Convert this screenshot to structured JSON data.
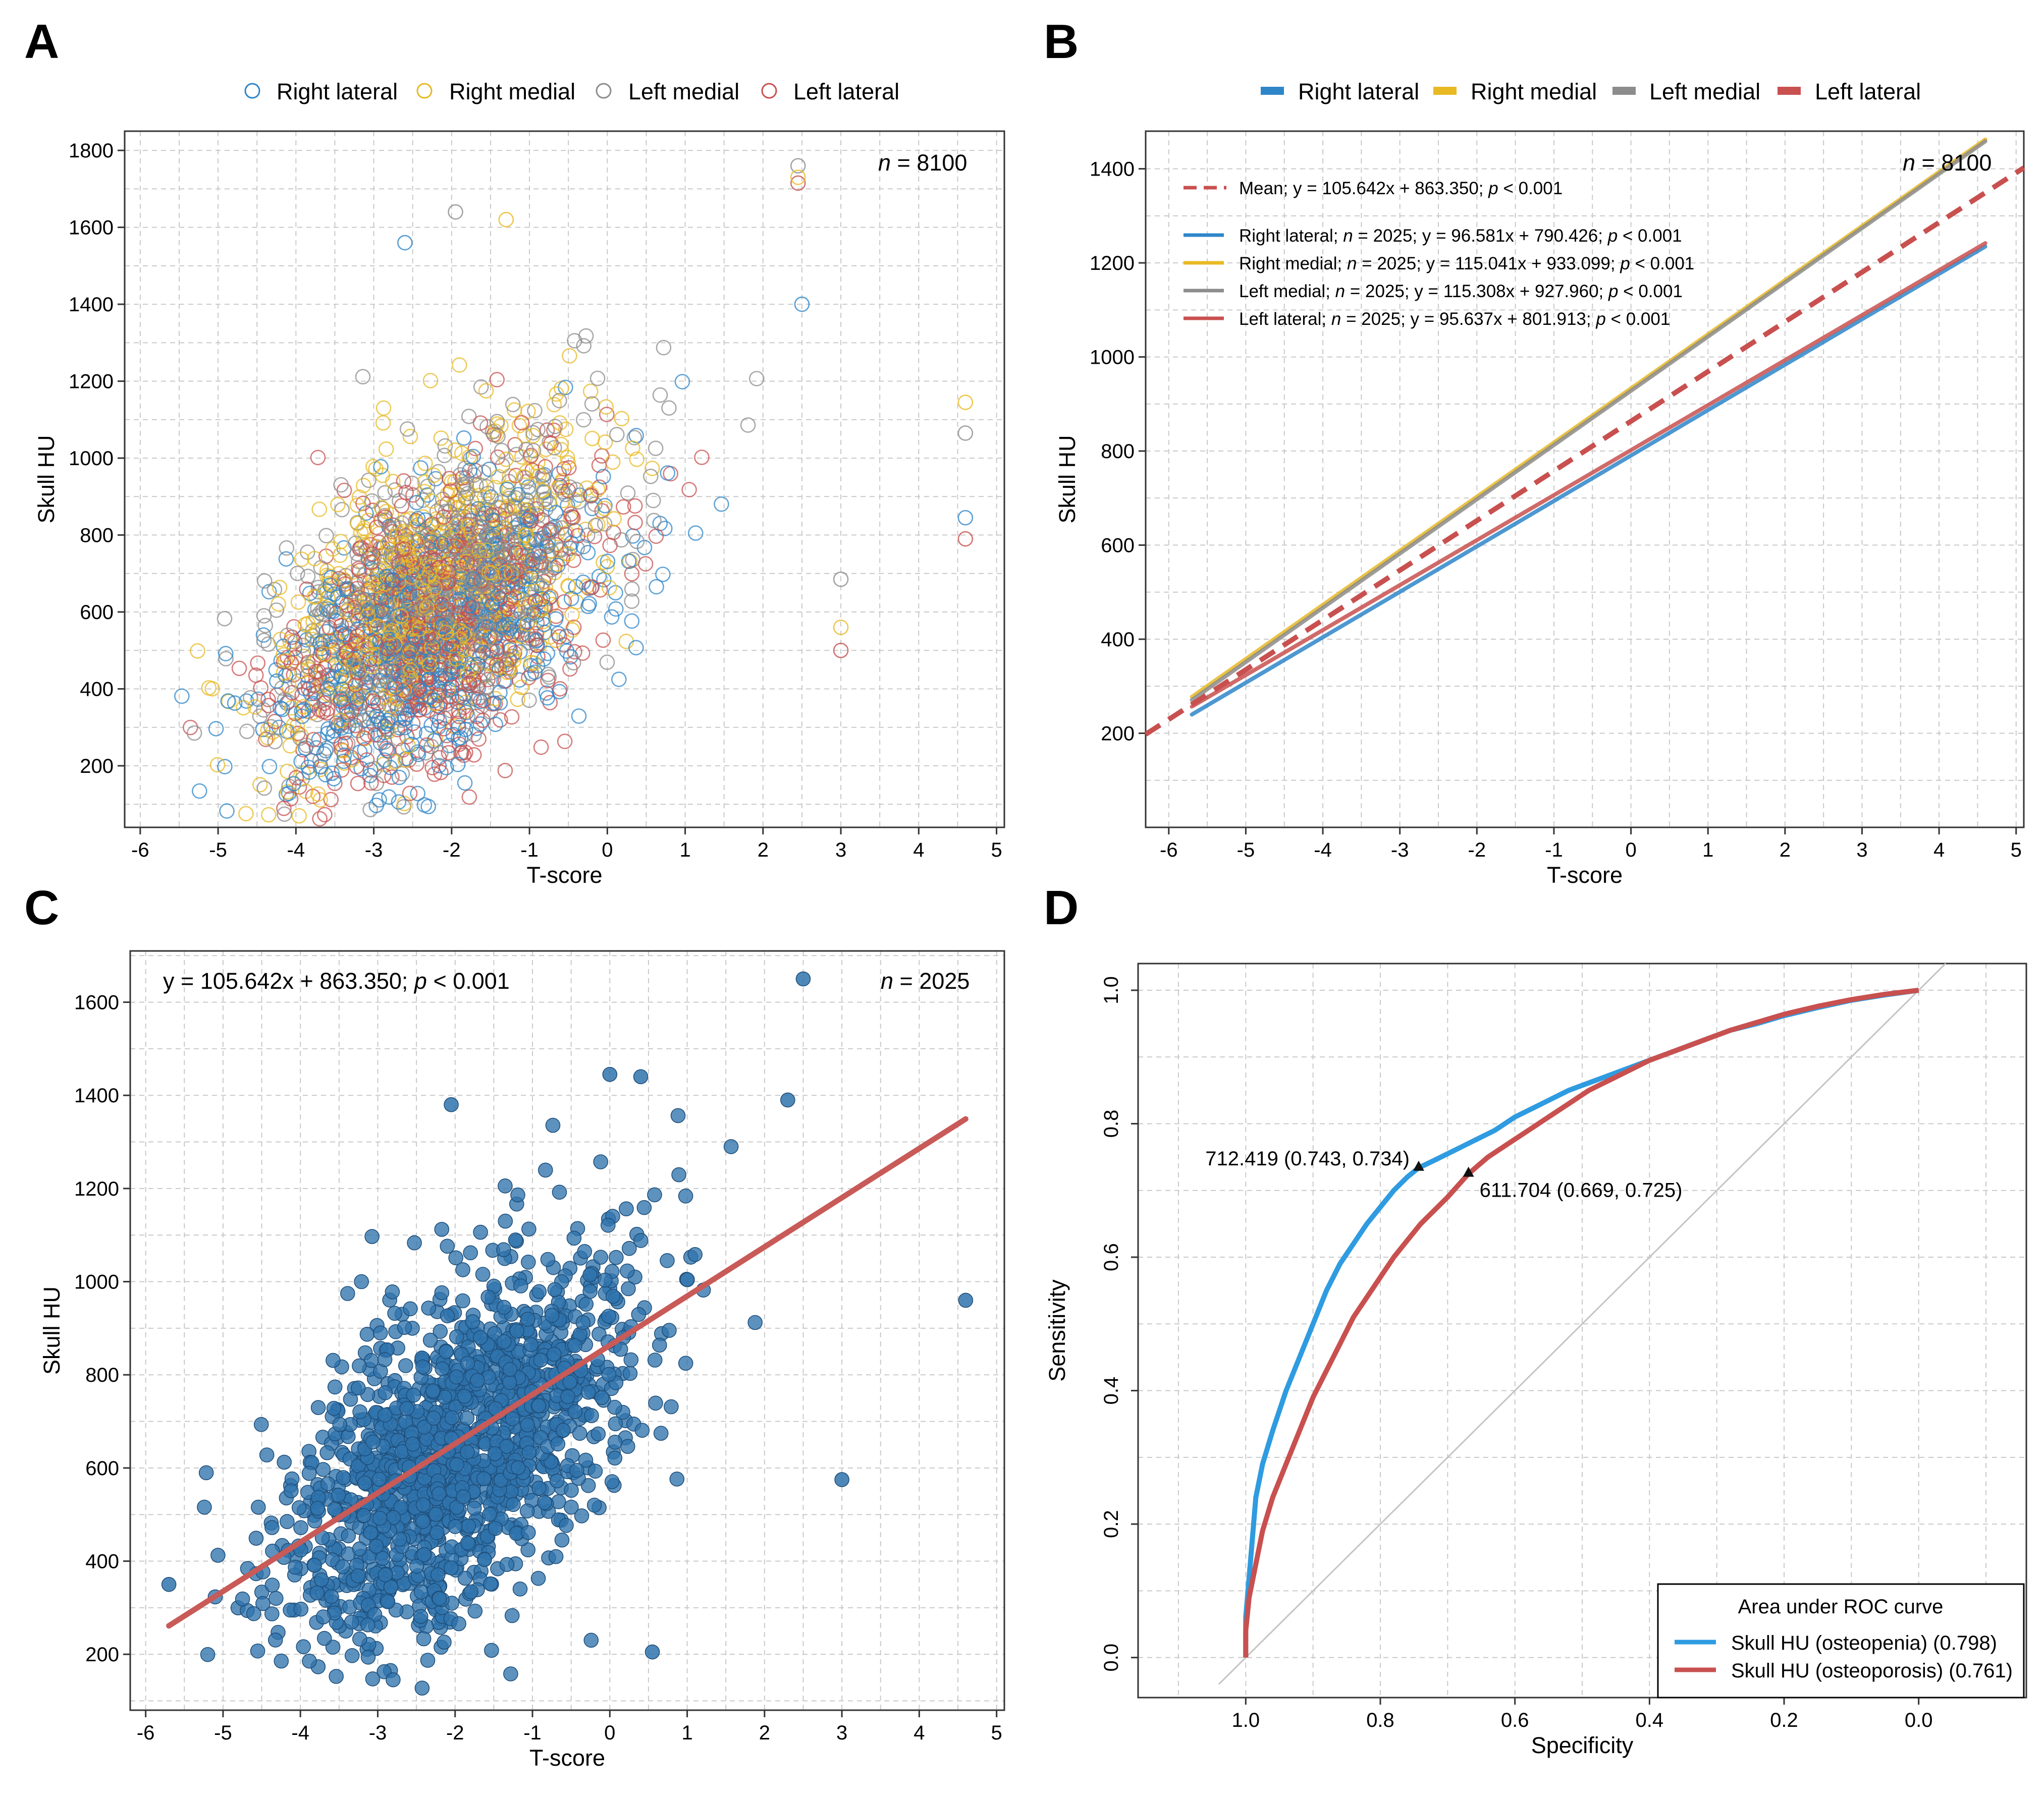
{
  "colors": {
    "right_lateral": "#2e86c9",
    "right_medial": "#e8b923",
    "left_medial": "#8c8c8c",
    "left_lateral": "#c8504f",
    "scatter_c": "#2f73ad",
    "fit_c": "#c85a58",
    "roc_osteopenia": "#2f9be0",
    "roc_osteoporosis": "#c8504f",
    "grid": "#c9c9c9"
  },
  "panels": {
    "A": {
      "letter": "A"
    },
    "B": {
      "letter": "B"
    },
    "C": {
      "letter": "C"
    },
    "D": {
      "letter": "D"
    }
  },
  "legend_top": {
    "right_lateral": "Right lateral",
    "right_medial": "Right medial",
    "left_medial": "Left medial",
    "left_lateral": "Left lateral"
  },
  "chart_data": [
    {
      "panel": "A",
      "type": "scatter",
      "title": "",
      "xlabel": "T-score",
      "ylabel": "Skull HU",
      "xlim": [
        -6.2,
        5.1
      ],
      "ylim": [
        40,
        1850
      ],
      "xticks": [
        -6,
        -5,
        -4,
        -3,
        -2,
        -1,
        0,
        1,
        2,
        3,
        4,
        5
      ],
      "yticks": [
        200,
        400,
        600,
        800,
        1000,
        1200,
        1400,
        1600,
        1800
      ],
      "n_label_italic": "n",
      "n_label_rest": " = 8100",
      "series": [
        {
          "name": "Right lateral",
          "slope": 96.581,
          "intercept": 790.426,
          "n": 2025,
          "marker": "open-circle"
        },
        {
          "name": "Right medial",
          "slope": 115.041,
          "intercept": 933.099,
          "n": 2025,
          "marker": "open-circle"
        },
        {
          "name": "Left medial",
          "slope": 115.308,
          "intercept": 927.96,
          "n": 2025,
          "marker": "open-circle"
        },
        {
          "name": "Left lateral",
          "slope": 95.637,
          "intercept": 801.913,
          "n": 2025,
          "marker": "open-circle"
        }
      ],
      "outliers": [
        {
          "series": "Left medial",
          "x": 2.45,
          "y": 1760
        },
        {
          "series": "Left lateral",
          "x": 2.45,
          "y": 1715
        },
        {
          "series": "Right medial",
          "x": 2.45,
          "y": 1730
        },
        {
          "series": "Right lateral",
          "x": 4.6,
          "y": 845
        },
        {
          "series": "Left lateral",
          "x": 4.6,
          "y": 790
        },
        {
          "series": "Right medial",
          "x": 4.6,
          "y": 1145
        },
        {
          "series": "Left medial",
          "x": 4.6,
          "y": 1065
        },
        {
          "series": "Left medial",
          "x": 3.0,
          "y": 685
        },
        {
          "series": "Right medial",
          "x": 3.0,
          "y": 560
        },
        {
          "series": "Left lateral",
          "x": 3.0,
          "y": 500
        },
        {
          "series": "Right lateral",
          "x": 2.5,
          "y": 1400
        },
        {
          "series": "Left medial",
          "x": -1.95,
          "y": 1640
        },
        {
          "series": "Right lateral",
          "x": -2.6,
          "y": 1560
        },
        {
          "series": "Right medial",
          "x": -1.3,
          "y": 1620
        }
      ]
    },
    {
      "panel": "B",
      "type": "line",
      "xlabel": "T-score",
      "ylabel": "Skull HU",
      "xlim": [
        -6.3,
        5.1
      ],
      "ylim": [
        0,
        1480
      ],
      "xticks": [
        -6,
        -5,
        -4,
        -3,
        -2,
        -1,
        0,
        1,
        2,
        3,
        4,
        5
      ],
      "yticks": [
        200,
        400,
        600,
        800,
        1000,
        1200,
        1400
      ],
      "n_label_italic": "n",
      "n_label_rest": " = 8100",
      "mean": {
        "label": "Mean; y = 105.642x + 863.350; p < 0.001",
        "label_a": "Mean; y = 105.642x + 863.350; ",
        "label_p": "p",
        "label_b": " < 0.001",
        "slope": 105.642,
        "intercept": 863.35,
        "x_range": [
          -6.3,
          5.1
        ],
        "style": "dashed"
      },
      "series": [
        {
          "name": "Right lateral",
          "label_a": "Right lateral; ",
          "label_n": "n",
          "label_b": " = 2025; y = 96.581x + 790.426; ",
          "label_p": "p",
          "label_c": " < 0.001",
          "slope": 96.581,
          "intercept": 790.426,
          "x_range": [
            -5.7,
            4.6
          ]
        },
        {
          "name": "Right medial",
          "label_a": "Right medial; ",
          "label_n": "n",
          "label_b": " = 2025; y = 115.041x + 933.099; ",
          "label_p": "p",
          "label_c": " < 0.001",
          "slope": 115.041,
          "intercept": 933.099,
          "x_range": [
            -5.7,
            4.6
          ]
        },
        {
          "name": "Left medial",
          "label_a": "Left medial; ",
          "label_n": "n",
          "label_b": " = 2025; y = 115.308x + 927.960; ",
          "label_p": "p",
          "label_c": " < 0.001",
          "slope": 115.308,
          "intercept": 927.96,
          "x_range": [
            -5.7,
            4.6
          ]
        },
        {
          "name": "Left lateral",
          "label_a": "Left lateral; ",
          "label_n": "n",
          "label_b": " = 2025; y = 95.637x + 801.913; ",
          "label_p": "p",
          "label_c": " < 0.001",
          "slope": 95.637,
          "intercept": 801.913,
          "x_range": [
            -5.7,
            4.6
          ]
        }
      ]
    },
    {
      "panel": "C",
      "type": "scatter",
      "xlabel": "T-score",
      "ylabel": "Skull HU",
      "xlim": [
        -6.2,
        5.1
      ],
      "ylim": [
        80,
        1710
      ],
      "xticks": [
        -6,
        -5,
        -4,
        -3,
        -2,
        -1,
        0,
        1,
        2,
        3,
        4,
        5
      ],
      "yticks": [
        200,
        400,
        600,
        800,
        1000,
        1200,
        1400,
        1600
      ],
      "equation_a": "y = 105.642x + 863.350; ",
      "equation_p": "p",
      "equation_b": " < 0.001",
      "n_label_italic": "n",
      "n_label_rest": " = 2025",
      "fit": {
        "slope": 105.642,
        "intercept": 863.35,
        "x_range": [
          -5.7,
          4.6
        ]
      },
      "n_points": 2025,
      "outliers": [
        {
          "x": 2.5,
          "y": 1650
        },
        {
          "x": 4.6,
          "y": 960
        },
        {
          "x": 3.0,
          "y": 575
        },
        {
          "x": -5.7,
          "y": 350
        },
        {
          "x": 0.55,
          "y": 205
        },
        {
          "x": 2.3,
          "y": 1390
        },
        {
          "x": 0.4,
          "y": 1440
        },
        {
          "x": 0.0,
          "y": 1445
        },
        {
          "x": -2.05,
          "y": 1380
        }
      ]
    },
    {
      "panel": "D",
      "type": "line",
      "subtype": "roc",
      "xlabel": "Specificity",
      "ylabel": "Sensitivity",
      "xlim": [
        1.16,
        -0.16
      ],
      "ylim": [
        -0.06,
        1.04
      ],
      "xticks": [
        1.0,
        0.8,
        0.6,
        0.4,
        0.2,
        0.0
      ],
      "xtick_labels": [
        "1.0",
        "0.8",
        "0.6",
        "0.4",
        "0.2",
        "0.0"
      ],
      "yticks": [
        0.0,
        0.2,
        0.4,
        0.6,
        0.8,
        1.0
      ],
      "ytick_labels": [
        "0.0",
        "0.2",
        "0.4",
        "0.6",
        "0.8",
        "1.0"
      ],
      "legend_title": "Area under ROC curve",
      "series": [
        {
          "name": "Skull HU (osteopenia) (0.798)",
          "specificity": [
            1.0,
            1.0,
            0.995,
            0.99,
            0.985,
            0.975,
            0.96,
            0.94,
            0.92,
            0.9,
            0.88,
            0.86,
            0.84,
            0.82,
            0.8,
            0.78,
            0.76,
            0.743,
            0.72,
            0.7,
            0.68,
            0.66,
            0.63,
            0.6,
            0.56,
            0.52,
            0.48,
            0.44,
            0.4,
            0.36,
            0.32,
            0.28,
            0.24,
            0.2,
            0.15,
            0.1,
            0.05,
            0.0
          ],
          "sensitivity": [
            0.0,
            0.06,
            0.12,
            0.18,
            0.24,
            0.29,
            0.34,
            0.4,
            0.45,
            0.5,
            0.55,
            0.59,
            0.62,
            0.65,
            0.675,
            0.7,
            0.72,
            0.734,
            0.745,
            0.755,
            0.765,
            0.775,
            0.79,
            0.81,
            0.83,
            0.85,
            0.865,
            0.88,
            0.895,
            0.91,
            0.925,
            0.94,
            0.95,
            0.962,
            0.974,
            0.985,
            0.993,
            1.0
          ]
        },
        {
          "name": "Skull HU (osteoporosis) (0.761)",
          "specificity": [
            1.0,
            1.0,
            0.995,
            0.985,
            0.975,
            0.96,
            0.94,
            0.92,
            0.9,
            0.88,
            0.86,
            0.84,
            0.82,
            0.8,
            0.78,
            0.76,
            0.74,
            0.72,
            0.7,
            0.669,
            0.64,
            0.61,
            0.58,
            0.55,
            0.52,
            0.49,
            0.46,
            0.43,
            0.4,
            0.36,
            0.32,
            0.28,
            0.24,
            0.2,
            0.15,
            0.1,
            0.05,
            0.0
          ],
          "sensitivity": [
            0.0,
            0.04,
            0.09,
            0.14,
            0.19,
            0.24,
            0.29,
            0.34,
            0.39,
            0.43,
            0.47,
            0.51,
            0.54,
            0.57,
            0.6,
            0.625,
            0.65,
            0.67,
            0.69,
            0.725,
            0.75,
            0.77,
            0.79,
            0.81,
            0.83,
            0.85,
            0.865,
            0.88,
            0.895,
            0.91,
            0.925,
            0.94,
            0.952,
            0.964,
            0.976,
            0.986,
            0.994,
            1.0
          ]
        }
      ],
      "cutoffs": [
        {
          "label": "712.419 (0.743, 0.734)",
          "specificity": 0.743,
          "sensitivity": 0.734,
          "anchor": "left"
        },
        {
          "label": "611.704 (0.669, 0.725)",
          "specificity": 0.669,
          "sensitivity": 0.725,
          "anchor": "right"
        }
      ]
    }
  ]
}
